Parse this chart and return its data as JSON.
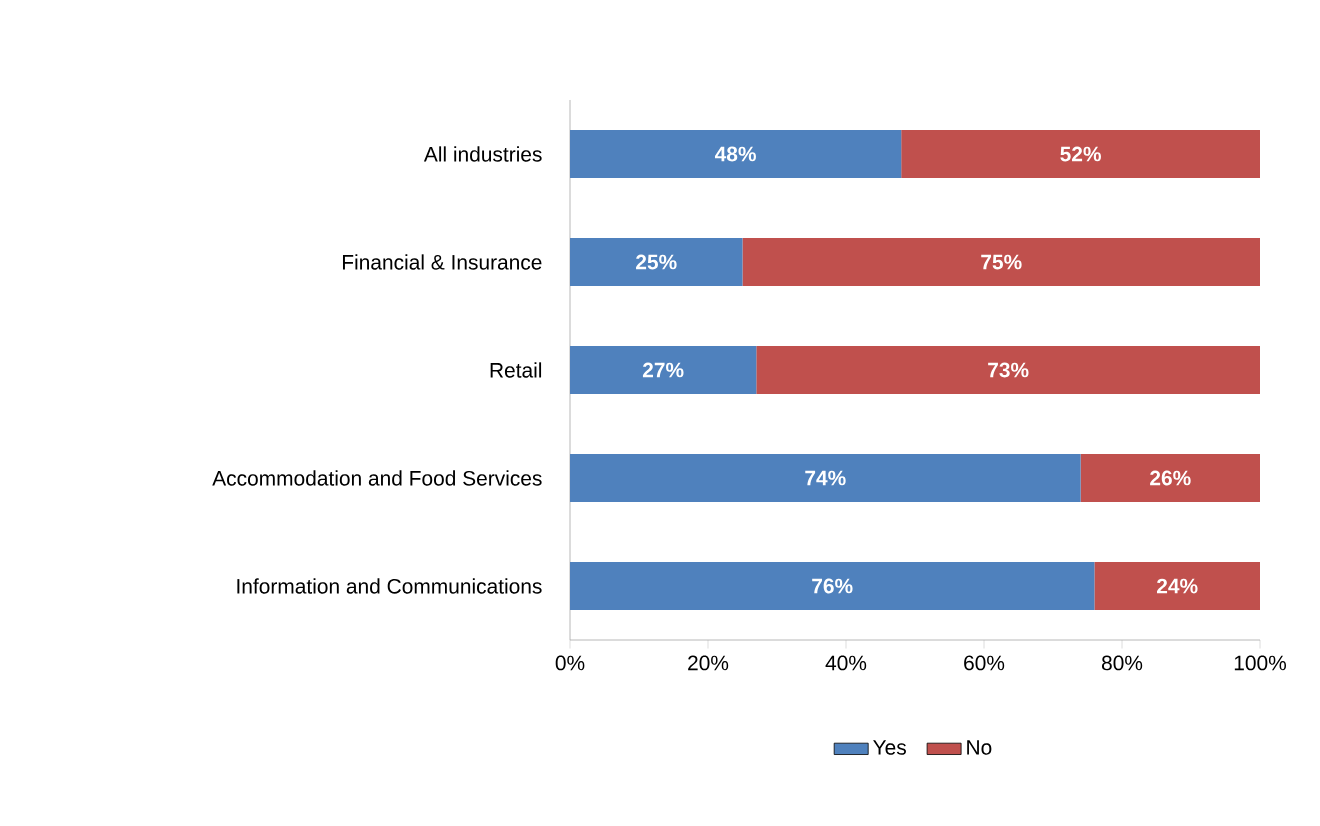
{
  "chart_data": {
    "type": "bar",
    "orientation": "horizontal",
    "stacked": true,
    "categories": [
      "All industries",
      "Financial & Insurance",
      "Retail",
      "Accommodation and Food Services",
      "Information and Communications"
    ],
    "series": [
      {
        "name": "Yes",
        "color": "#4f81bd",
        "values": [
          48,
          25,
          27,
          74,
          76
        ],
        "value_labels": [
          "48%",
          "25%",
          "27%",
          "74%",
          "76%"
        ]
      },
      {
        "name": "No",
        "color": "#c0504d",
        "values": [
          52,
          75,
          73,
          26,
          24
        ],
        "value_labels": [
          "52%",
          "75%",
          "73%",
          "26%",
          "24%"
        ]
      }
    ],
    "xlim": [
      0,
      100
    ],
    "xticks": [
      {
        "value": 0,
        "label": "0%"
      },
      {
        "value": 20,
        "label": "20%"
      },
      {
        "value": 40,
        "label": "40%"
      },
      {
        "value": 60,
        "label": "60%"
      },
      {
        "value": 80,
        "label": "80%"
      },
      {
        "value": 100,
        "label": "100%"
      }
    ],
    "legend": "bottom"
  }
}
